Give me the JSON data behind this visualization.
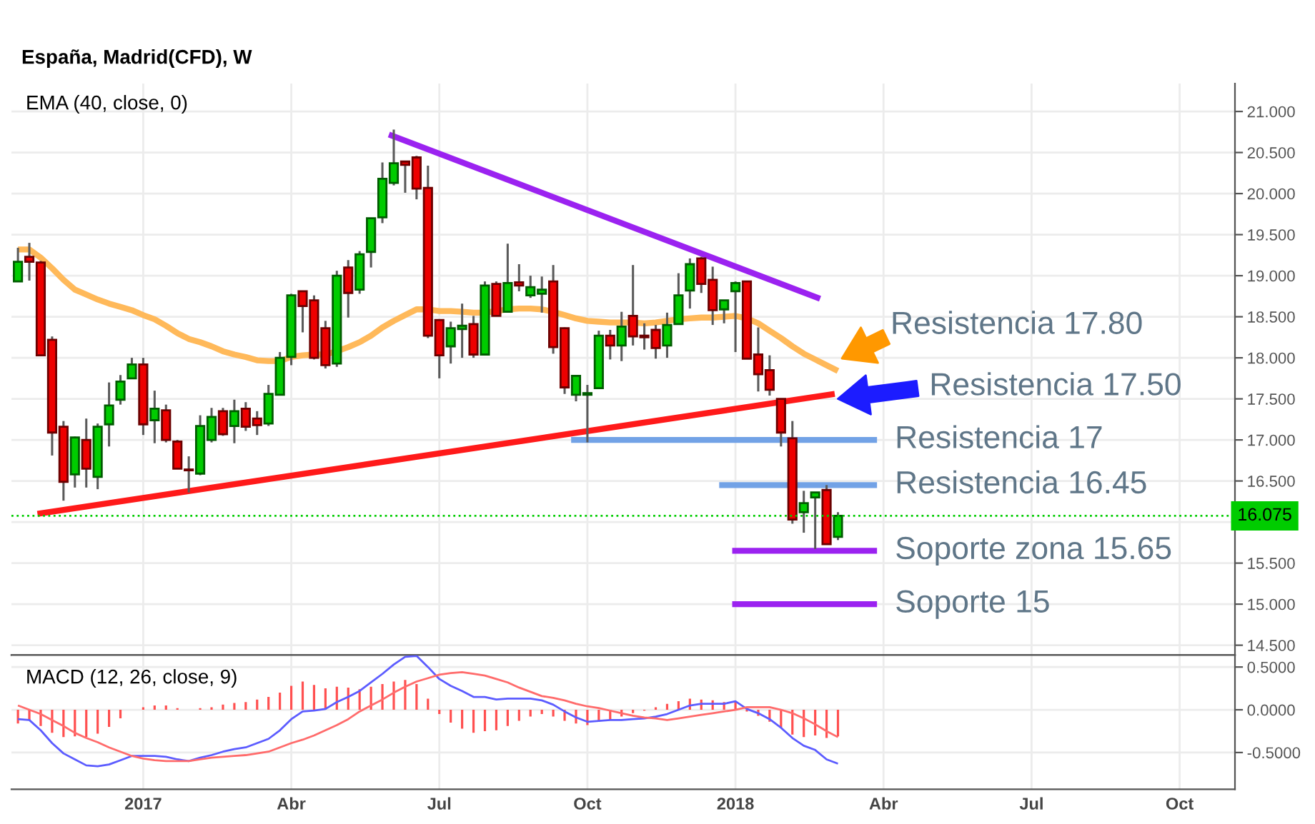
{
  "chart_data": [
    {
      "type": "candlestick",
      "title": "España, Madrid(CFD), W",
      "annotations": [
        "EMA (40, close, 0)",
        "Resistencia 17.80",
        {
          "text": "Resistencia 17.50",
          "x": "2018-03-05",
          "y": 17.5
        }
      ],
      "x": [
        "2016-10-17",
        "2016-10-24",
        "2016-10-31",
        "2016-11-07",
        "2016-11-14",
        "2016-11-21",
        "2016-11-28",
        "2016-12-05",
        "2016-12-12",
        "2016-12-19",
        "2016-12-26",
        "2017-01-02",
        "2017-01-09",
        "2017-01-16",
        "2017-01-23",
        "2017-01-30",
        "2017-02-06",
        "2017-02-13",
        "2017-02-20",
        "2017-02-27",
        "2017-03-06",
        "2017-03-13",
        "2017-03-20",
        "2017-03-27",
        "2017-04-03",
        "2017-04-10",
        "2017-04-17",
        "2017-04-24",
        "2017-05-01",
        "2017-05-08",
        "2017-05-15",
        "2017-05-22",
        "2017-05-29",
        "2017-06-05",
        "2017-06-12",
        "2017-06-19",
        "2017-06-26",
        "2017-07-03",
        "2017-07-10",
        "2017-07-17",
        "2017-07-24",
        "2017-07-31",
        "2017-08-07",
        "2017-08-14",
        "2017-08-21",
        "2017-08-28",
        "2017-09-04",
        "2017-09-11",
        "2017-09-18",
        "2017-09-25",
        "2017-10-02",
        "2017-10-09",
        "2017-10-16",
        "2017-10-23",
        "2017-10-30",
        "2017-11-06",
        "2017-11-13",
        "2017-11-20",
        "2017-11-27",
        "2017-12-04",
        "2017-12-11",
        "2017-12-18",
        "2017-12-25",
        "2018-01-01",
        "2018-01-08",
        "2018-01-15",
        "2018-01-22",
        "2018-01-29",
        "2018-02-05",
        "2018-02-12",
        "2018-02-19",
        "2018-02-26",
        "2018-03-05"
      ],
      "ohlc": [
        [
          18.93,
          19.34,
          18.93,
          19.17
        ],
        [
          19.23,
          19.4,
          18.94,
          19.17
        ],
        [
          19.16,
          19.18,
          18.03,
          18.03
        ],
        [
          18.22,
          18.26,
          16.81,
          17.09
        ],
        [
          17.16,
          17.23,
          16.26,
          16.49
        ],
        [
          16.58,
          17.04,
          16.42,
          17.03
        ],
        [
          17.0,
          17.26,
          16.42,
          16.65
        ],
        [
          16.55,
          17.2,
          16.4,
          17.16
        ],
        [
          17.19,
          17.7,
          16.92,
          17.42
        ],
        [
          17.49,
          17.79,
          17.43,
          17.71
        ],
        [
          17.75,
          18.0,
          17.75,
          17.92
        ],
        [
          17.92,
          18.0,
          17.06,
          17.19
        ],
        [
          17.24,
          17.6,
          16.96,
          17.38
        ],
        [
          17.36,
          17.43,
          16.97,
          17.0
        ],
        [
          16.98,
          17.0,
          16.65,
          16.65
        ],
        [
          16.64,
          16.8,
          16.36,
          16.63
        ],
        [
          16.59,
          17.3,
          16.57,
          17.17
        ],
        [
          17.0,
          17.39,
          16.97,
          17.28
        ],
        [
          17.35,
          17.39,
          17.05,
          17.07
        ],
        [
          17.17,
          17.49,
          16.96,
          17.35
        ],
        [
          17.38,
          17.46,
          17.11,
          17.16
        ],
        [
          17.26,
          17.35,
          17.06,
          17.18
        ],
        [
          17.2,
          17.67,
          17.17,
          17.56
        ],
        [
          17.55,
          18.07,
          17.55,
          18.0
        ],
        [
          18.01,
          18.78,
          17.91,
          18.76
        ],
        [
          18.81,
          18.81,
          18.31,
          18.63
        ],
        [
          18.7,
          18.76,
          17.98,
          18.0
        ],
        [
          18.36,
          18.45,
          17.87,
          17.91
        ],
        [
          17.93,
          19.06,
          17.89,
          19.0
        ],
        [
          19.1,
          19.19,
          18.49,
          18.79
        ],
        [
          18.83,
          19.3,
          18.78,
          19.26
        ],
        [
          19.29,
          19.7,
          19.1,
          19.7
        ],
        [
          19.71,
          20.38,
          19.64,
          20.18
        ],
        [
          20.13,
          20.78,
          20.1,
          20.37
        ],
        [
          20.39,
          20.39,
          20.01,
          20.35
        ],
        [
          20.44,
          20.46,
          19.93,
          20.06
        ],
        [
          20.07,
          20.34,
          18.24,
          18.27
        ],
        [
          18.46,
          18.46,
          17.75,
          18.03
        ],
        [
          18.14,
          18.44,
          17.93,
          18.36
        ],
        [
          18.35,
          18.66,
          18.0,
          18.39
        ],
        [
          18.41,
          18.51,
          18.0,
          18.04
        ],
        [
          18.04,
          18.93,
          18.04,
          18.88
        ],
        [
          18.9,
          18.93,
          18.51,
          18.51
        ],
        [
          18.56,
          19.39,
          18.56,
          18.91
        ],
        [
          18.92,
          19.14,
          18.81,
          18.88
        ],
        [
          18.76,
          19.0,
          18.73,
          18.86
        ],
        [
          18.78,
          18.99,
          18.55,
          18.83
        ],
        [
          18.93,
          19.13,
          18.05,
          18.13
        ],
        [
          18.36,
          18.37,
          17.56,
          17.64
        ],
        [
          17.55,
          17.78,
          17.47,
          17.78
        ],
        [
          17.55,
          17.67,
          16.97,
          17.57
        ],
        [
          17.63,
          18.33,
          17.63,
          18.27
        ],
        [
          18.27,
          18.34,
          17.98,
          18.15
        ],
        [
          18.15,
          18.56,
          17.96,
          18.38
        ],
        [
          18.51,
          19.13,
          18.15,
          18.26
        ],
        [
          18.27,
          18.42,
          18.1,
          18.25
        ],
        [
          18.34,
          18.4,
          17.99,
          18.12
        ],
        [
          18.15,
          18.55,
          18.0,
          18.4
        ],
        [
          18.41,
          19.03,
          18.41,
          18.76
        ],
        [
          18.82,
          19.21,
          18.6,
          19.14
        ],
        [
          19.21,
          19.23,
          18.79,
          18.9
        ],
        [
          18.95,
          19.11,
          18.4,
          18.58
        ],
        [
          18.59,
          18.7,
          18.42,
          18.7
        ],
        [
          18.81,
          18.93,
          18.07,
          18.91
        ],
        [
          18.93,
          18.94,
          17.99,
          17.99
        ],
        [
          18.04,
          18.37,
          17.59,
          17.8
        ],
        [
          17.85,
          18.03,
          17.54,
          17.61
        ],
        [
          17.5,
          17.5,
          16.92,
          17.09
        ],
        [
          17.02,
          17.23,
          15.98,
          16.03
        ],
        [
          16.12,
          16.38,
          15.87,
          16.23
        ],
        [
          16.3,
          16.36,
          15.67,
          16.36
        ],
        [
          16.39,
          16.45,
          15.73,
          15.73
        ],
        [
          15.82,
          16.12,
          15.78,
          16.075
        ]
      ],
      "colors": [
        "#00cc00",
        "#ee0000",
        "#ee0000",
        "#ee0000",
        "#ee0000",
        "#00cc00",
        "#ee0000",
        "#00cc00",
        "#00cc00",
        "#00cc00",
        "#00cc00",
        "#ee0000",
        "#00cc00",
        "#ee0000",
        "#ee0000",
        "#ee0000",
        "#00cc00",
        "#00cc00",
        "#ee0000",
        "#00cc00",
        "#ee0000",
        "#ee0000",
        "#00cc00",
        "#00cc00",
        "#00cc00",
        "#ee0000",
        "#ee0000",
        "#ee0000",
        "#00cc00",
        "#ee0000",
        "#00cc00",
        "#00cc00",
        "#00cc00",
        "#00cc00",
        "#ee0000",
        "#ee0000",
        "#ee0000",
        "#ee0000",
        "#00cc00",
        "#00cc00",
        "#ee0000",
        "#00cc00",
        "#ee0000",
        "#00cc00",
        "#ee0000",
        "#00cc00",
        "#00cc00",
        "#ee0000",
        "#ee0000",
        "#00cc00",
        "#00cc00",
        "#00cc00",
        "#ee0000",
        "#00cc00",
        "#ee0000",
        "#ee0000",
        "#ee0000",
        "#00cc00",
        "#00cc00",
        "#00cc00",
        "#ee0000",
        "#ee0000",
        "#00cc00",
        "#00cc00",
        "#ee0000",
        "#ee0000",
        "#ee0000",
        "#ee0000",
        "#ee0000",
        "#00cc00",
        "#00cc00",
        "#ee0000",
        "#00cc00"
      ],
      "series": [
        {
          "type": "line",
          "color": "#ffb95a",
          "values": [
            19.32,
            19.32,
            19.22,
            19.09,
            18.95,
            18.83,
            18.77,
            18.71,
            18.66,
            18.62,
            18.58,
            18.52,
            18.47,
            18.39,
            18.3,
            18.23,
            18.19,
            18.14,
            18.08,
            18.04,
            18.01,
            17.97,
            17.96,
            17.96,
            18.01,
            18.03,
            18.04,
            18.04,
            18.08,
            18.13,
            18.19,
            18.27,
            18.37,
            18.45,
            18.52,
            18.59,
            18.59,
            18.57,
            18.57,
            18.56,
            18.55,
            18.55,
            18.57,
            18.59,
            18.6,
            18.6,
            18.59,
            18.56,
            18.52,
            18.48,
            18.45,
            18.44,
            18.43,
            18.43,
            18.43,
            18.42,
            18.43,
            18.45,
            18.47,
            18.48,
            18.49,
            18.49,
            18.5,
            18.51,
            18.48,
            18.42,
            18.33,
            18.24,
            18.14,
            18.05,
            17.98,
            17.91,
            17.84
          ]
        },
        {
          "type": "line",
          "color": "#9b22f0",
          "x": [
            "2017-06-02",
            "2018-02-22"
          ],
          "values": [
            20.72,
            18.72
          ]
        },
        {
          "type": "line",
          "color": "#ff1a1a",
          "x": [
            "2016-10-29",
            "2018-03-03"
          ],
          "values": [
            16.1,
            17.56
          ]
        },
        {
          "type": "line",
          "name": "Resistencia 17",
          "color": "#72a2e6",
          "x": [
            "2017-09-22",
            "2018-03-29"
          ],
          "values": [
            17,
            17
          ]
        },
        {
          "type": "line",
          "name": "Resistencia 16.45",
          "color": "#72a2e6",
          "x": [
            "2017-12-22",
            "2018-03-29"
          ],
          "values": [
            16.45,
            16.45
          ]
        },
        {
          "type": "line",
          "name": "Soporte zona 15.65",
          "color": "#9b22f0",
          "x": [
            "2017-12-30",
            "2018-03-29"
          ],
          "values": [
            15.65,
            15.65
          ]
        },
        {
          "type": "line",
          "name": "Soporte 15",
          "color": "#9b22f0",
          "x": [
            "2017-12-30",
            "2018-03-29"
          ],
          "values": [
            15,
            15
          ]
        }
      ],
      "ref_lines": [
        {
          "axis": "y",
          "value": 16.075,
          "label": "16.075",
          "color": "#00cc00",
          "line_style": "dotted"
        }
      ],
      "xlim": [
        "2016-10-13",
        "2018-11-04"
      ],
      "xticks": [
        {
          "value": "2017-01-02",
          "label": null
        },
        {
          "value": "2017-04-03",
          "label": null
        },
        {
          "value": "2017-07-03",
          "label": null
        },
        {
          "value": "2017-10-02",
          "label": null
        },
        {
          "value": "2018-01-01",
          "label": null
        },
        {
          "value": "2018-04-02",
          "label": null
        },
        {
          "value": "2018-07-02",
          "label": null
        },
        {
          "value": "2018-10-01",
          "label": null
        }
      ],
      "ylim": [
        14.38,
        21.34
      ],
      "yticks": [
        {
          "value": 14.5,
          "label": "14.500"
        },
        {
          "value": 15,
          "label": "15.000"
        },
        {
          "value": 15.5,
          "label": "15.500"
        },
        {
          "value": 16,
          "label": null
        },
        {
          "value": 16.5,
          "label": "16.500"
        },
        {
          "value": 17,
          "label": "17.000"
        },
        {
          "value": 17.5,
          "label": "17.500"
        },
        {
          "value": 18,
          "label": "18.000"
        },
        {
          "value": 18.5,
          "label": "18.500"
        },
        {
          "value": 19,
          "label": "19.000"
        },
        {
          "value": 19.5,
          "label": "19.500"
        },
        {
          "value": 20,
          "label": "20.000"
        },
        {
          "value": 20.5,
          "label": "20.500"
        },
        {
          "value": 21,
          "label": "21.000"
        }
      ],
      "tick_labels": "y",
      "grid": true
    },
    {
      "type": "line",
      "title": "MACD (12, 26, close, 9)",
      "x": [
        "2016-10-17",
        "2016-10-24",
        "2016-10-31",
        "2016-11-07",
        "2016-11-14",
        "2016-11-21",
        "2016-11-28",
        "2016-12-05",
        "2016-12-12",
        "2016-12-19",
        "2016-12-26",
        "2017-01-02",
        "2017-01-09",
        "2017-01-16",
        "2017-01-23",
        "2017-01-30",
        "2017-02-06",
        "2017-02-13",
        "2017-02-20",
        "2017-02-27",
        "2017-03-06",
        "2017-03-13",
        "2017-03-20",
        "2017-03-27",
        "2017-04-03",
        "2017-04-10",
        "2017-04-17",
        "2017-04-24",
        "2017-05-01",
        "2017-05-08",
        "2017-05-15",
        "2017-05-22",
        "2017-05-29",
        "2017-06-05",
        "2017-06-12",
        "2017-06-19",
        "2017-06-26",
        "2017-07-03",
        "2017-07-10",
        "2017-07-17",
        "2017-07-24",
        "2017-07-31",
        "2017-08-07",
        "2017-08-14",
        "2017-08-21",
        "2017-08-28",
        "2017-09-04",
        "2017-09-11",
        "2017-09-18",
        "2017-09-25",
        "2017-10-02",
        "2017-10-09",
        "2017-10-16",
        "2017-10-23",
        "2017-10-30",
        "2017-11-06",
        "2017-11-13",
        "2017-11-20",
        "2017-11-27",
        "2017-12-04",
        "2017-12-11",
        "2017-12-18",
        "2017-12-25",
        "2018-01-01",
        "2018-01-08",
        "2018-01-15",
        "2018-01-22",
        "2018-01-29",
        "2018-02-05",
        "2018-02-12",
        "2018-02-19",
        "2018-02-26",
        "2018-03-05"
      ],
      "series": [
        {
          "type": "bar",
          "color": "#ff5050",
          "values": [
            -0.16,
            -0.12,
            -0.19,
            -0.27,
            -0.32,
            -0.31,
            -0.32,
            -0.28,
            -0.2,
            -0.1,
            0.0,
            0.03,
            0.05,
            0.05,
            0.02,
            0.0,
            0.02,
            0.03,
            0.06,
            0.08,
            0.09,
            0.12,
            0.15,
            0.2,
            0.28,
            0.33,
            0.29,
            0.25,
            0.27,
            0.26,
            0.24,
            0.27,
            0.3,
            0.33,
            0.35,
            0.3,
            0.13,
            -0.05,
            -0.15,
            -0.22,
            -0.27,
            -0.25,
            -0.24,
            -0.19,
            -0.13,
            -0.08,
            -0.05,
            -0.08,
            -0.13,
            -0.16,
            -0.18,
            -0.14,
            -0.12,
            -0.08,
            -0.04,
            -0.01,
            0.03,
            0.07,
            0.1,
            0.13,
            0.12,
            0.11,
            0.09,
            0.1,
            -0.02,
            -0.07,
            -0.14,
            -0.21,
            -0.29,
            -0.32,
            -0.3,
            -0.33,
            -0.31
          ]
        },
        {
          "type": "line",
          "color": "#5c5cff",
          "values": [
            -0.11,
            -0.12,
            -0.24,
            -0.39,
            -0.51,
            -0.58,
            -0.65,
            -0.66,
            -0.64,
            -0.59,
            -0.54,
            -0.54,
            -0.54,
            -0.55,
            -0.58,
            -0.6,
            -0.56,
            -0.53,
            -0.49,
            -0.46,
            -0.44,
            -0.39,
            -0.34,
            -0.24,
            -0.11,
            -0.02,
            -0.01,
            0.01,
            0.09,
            0.15,
            0.22,
            0.32,
            0.42,
            0.53,
            0.62,
            0.63,
            0.5,
            0.36,
            0.28,
            0.22,
            0.15,
            0.15,
            0.12,
            0.13,
            0.13,
            0.13,
            0.11,
            0.06,
            -0.02,
            -0.09,
            -0.14,
            -0.13,
            -0.12,
            -0.12,
            -0.11,
            -0.1,
            -0.08,
            -0.05,
            0.0,
            0.05,
            0.07,
            0.07,
            0.07,
            0.1,
            0.01,
            -0.04,
            -0.11,
            -0.21,
            -0.33,
            -0.42,
            -0.47,
            -0.58,
            -0.63
          ]
        },
        {
          "type": "line",
          "color": "#ff6b6b",
          "values": [
            0.05,
            0.0,
            -0.05,
            -0.12,
            -0.19,
            -0.27,
            -0.33,
            -0.38,
            -0.44,
            -0.49,
            -0.54,
            -0.57,
            -0.59,
            -0.6,
            -0.6,
            -0.6,
            -0.58,
            -0.56,
            -0.55,
            -0.54,
            -0.53,
            -0.51,
            -0.49,
            -0.44,
            -0.39,
            -0.35,
            -0.3,
            -0.24,
            -0.18,
            -0.11,
            -0.02,
            0.05,
            0.12,
            0.2,
            0.27,
            0.33,
            0.37,
            0.41,
            0.43,
            0.44,
            0.42,
            0.4,
            0.36,
            0.32,
            0.26,
            0.21,
            0.16,
            0.14,
            0.11,
            0.07,
            0.04,
            0.02,
            -0.01,
            -0.04,
            -0.07,
            -0.09,
            -0.1,
            -0.12,
            -0.1,
            -0.08,
            -0.06,
            -0.04,
            -0.02,
            0.0,
            0.03,
            0.03,
            0.03,
            0.0,
            -0.04,
            -0.1,
            -0.17,
            -0.25,
            -0.32
          ]
        }
      ],
      "xlim": [
        "2016-10-13",
        "2018-11-04"
      ],
      "xticks": [
        {
          "value": "2017-01-02",
          "label": "2017"
        },
        {
          "value": "2017-04-03",
          "label": "Abr"
        },
        {
          "value": "2017-07-03",
          "label": "Jul"
        },
        {
          "value": "2017-10-02",
          "label": "Oct"
        },
        {
          "value": "2018-01-01",
          "label": "2018"
        },
        {
          "value": "2018-04-02",
          "label": "Abr"
        },
        {
          "value": "2018-07-02",
          "label": "Jul"
        },
        {
          "value": "2018-10-01",
          "label": "Oct"
        }
      ],
      "ylim": [
        -0.93,
        0.64
      ],
      "yticks": [
        {
          "value": 0.5,
          "label": "0.5000"
        },
        {
          "value": 0,
          "label": "0.0000"
        },
        {
          "value": -0.5,
          "label": "-0.5000"
        }
      ],
      "grid": true
    }
  ]
}
